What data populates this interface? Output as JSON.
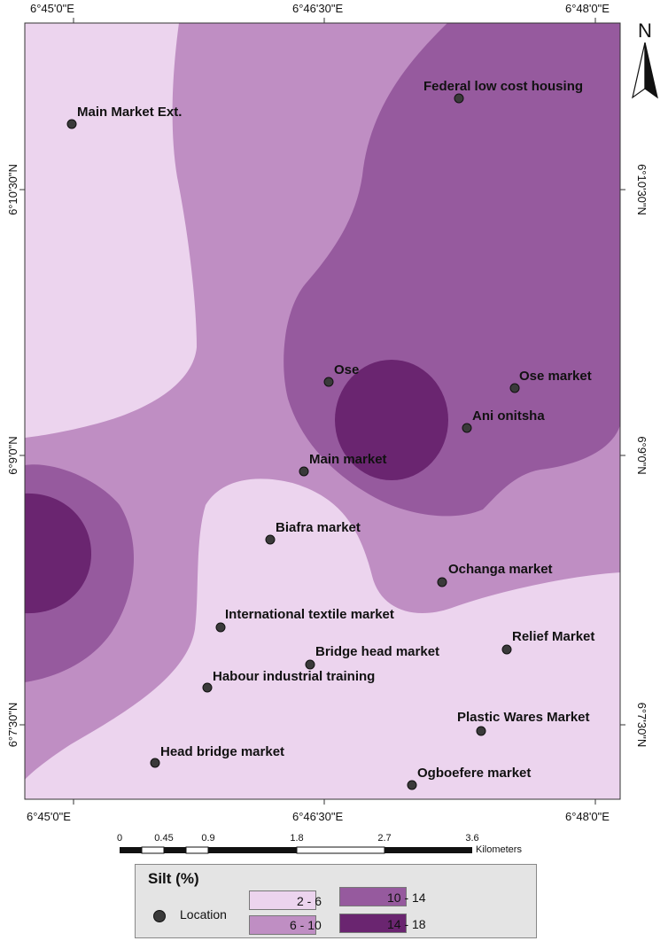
{
  "north_arrow": {
    "label": "N"
  },
  "axes": {
    "top": [
      "6°45'0\"E",
      "6°46'30\"E",
      "6°48'0\"E"
    ],
    "bottom": [
      "6°45'0\"E",
      "6°46'30\"E",
      "6°48'0\"E"
    ],
    "left": [
      "6°10'30\"N",
      "6°9'0\"N",
      "6°7'30\"N"
    ],
    "right": [
      "6°10'30\"N",
      "6°9'0\"N",
      "6°7'30\"N"
    ]
  },
  "locations": [
    {
      "name": "Federal low cost housing"
    },
    {
      "name": "Main Market Ext."
    },
    {
      "name": "Ose"
    },
    {
      "name": "Ose market"
    },
    {
      "name": "Ani onitsha"
    },
    {
      "name": "Main market"
    },
    {
      "name": "Biafra market"
    },
    {
      "name": "Ochanga market"
    },
    {
      "name": "International textile market"
    },
    {
      "name": "Relief Market"
    },
    {
      "name": "Bridge head market"
    },
    {
      "name": "Habour industrial training"
    },
    {
      "name": "Plastic Wares Market"
    },
    {
      "name": "Head bridge market"
    },
    {
      "name": "Ogboefere market"
    }
  ],
  "scale_bar": {
    "ticks": [
      "0",
      "0.45",
      "0.9",
      "1.8",
      "2.7",
      "3.6"
    ],
    "unit": "Kilometers"
  },
  "legend": {
    "title": "Silt (%)",
    "location_label": "Location",
    "classes": [
      {
        "range": "2 - 6",
        "color": "#ecd4ee"
      },
      {
        "range": "6 -  10",
        "color": "#bf8ec3"
      },
      {
        "range": "10 - 14",
        "color": "#965a9e"
      },
      {
        "range": "14 - 18",
        "color": "#6a2570"
      }
    ]
  }
}
